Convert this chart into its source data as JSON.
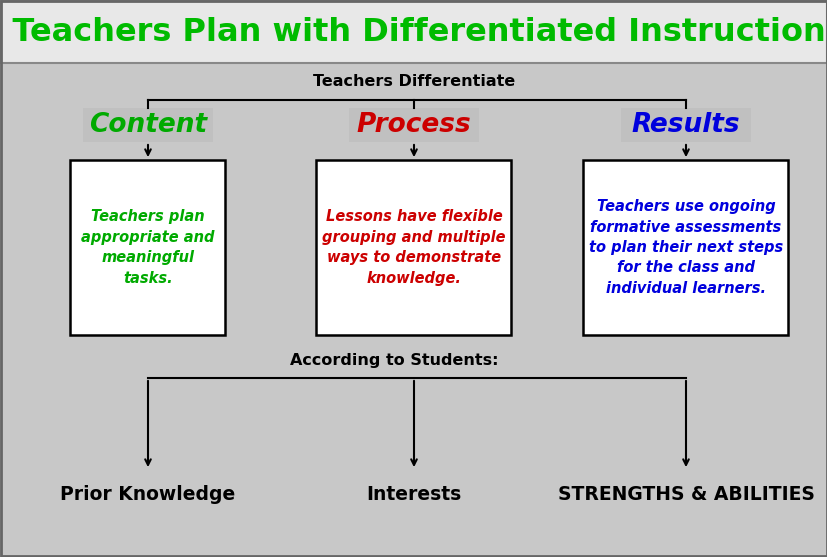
{
  "title": "How Teachers Plan with Differentiated Instruction (DI)",
  "title_color": "#00bb00",
  "title_fontsize": 23,
  "bg_color": "#c8c8c8",
  "teachers_differentiate": "Teachers Differentiate",
  "according_to_students": "According to Students:",
  "col1_header": "Content",
  "col2_header": "Process",
  "col3_header": "Results",
  "col1_color": "#00aa00",
  "col2_color": "#cc0000",
  "col3_color": "#0000dd",
  "col1_text": "Teachers plan\nappropriate and\nmeaningful\ntasks.",
  "col2_text": "Lessons have flexible\ngrouping and multiple\nways to demonstrate\nknowledge.",
  "col3_text": "Teachers use ongoing\nformative assessments\nto plan their next steps\nfor the class and\nindividual learners.",
  "bottom1": "Prior Knowledge",
  "bottom2": "Interests",
  "bottom3": "STRENGTHS & ABILITIES",
  "box_facecolor": "#ffffff",
  "box_edgecolor": "#000000",
  "title_box_facecolor": "#e8e8e8",
  "gray_box_facecolor": "#c0c0c0"
}
